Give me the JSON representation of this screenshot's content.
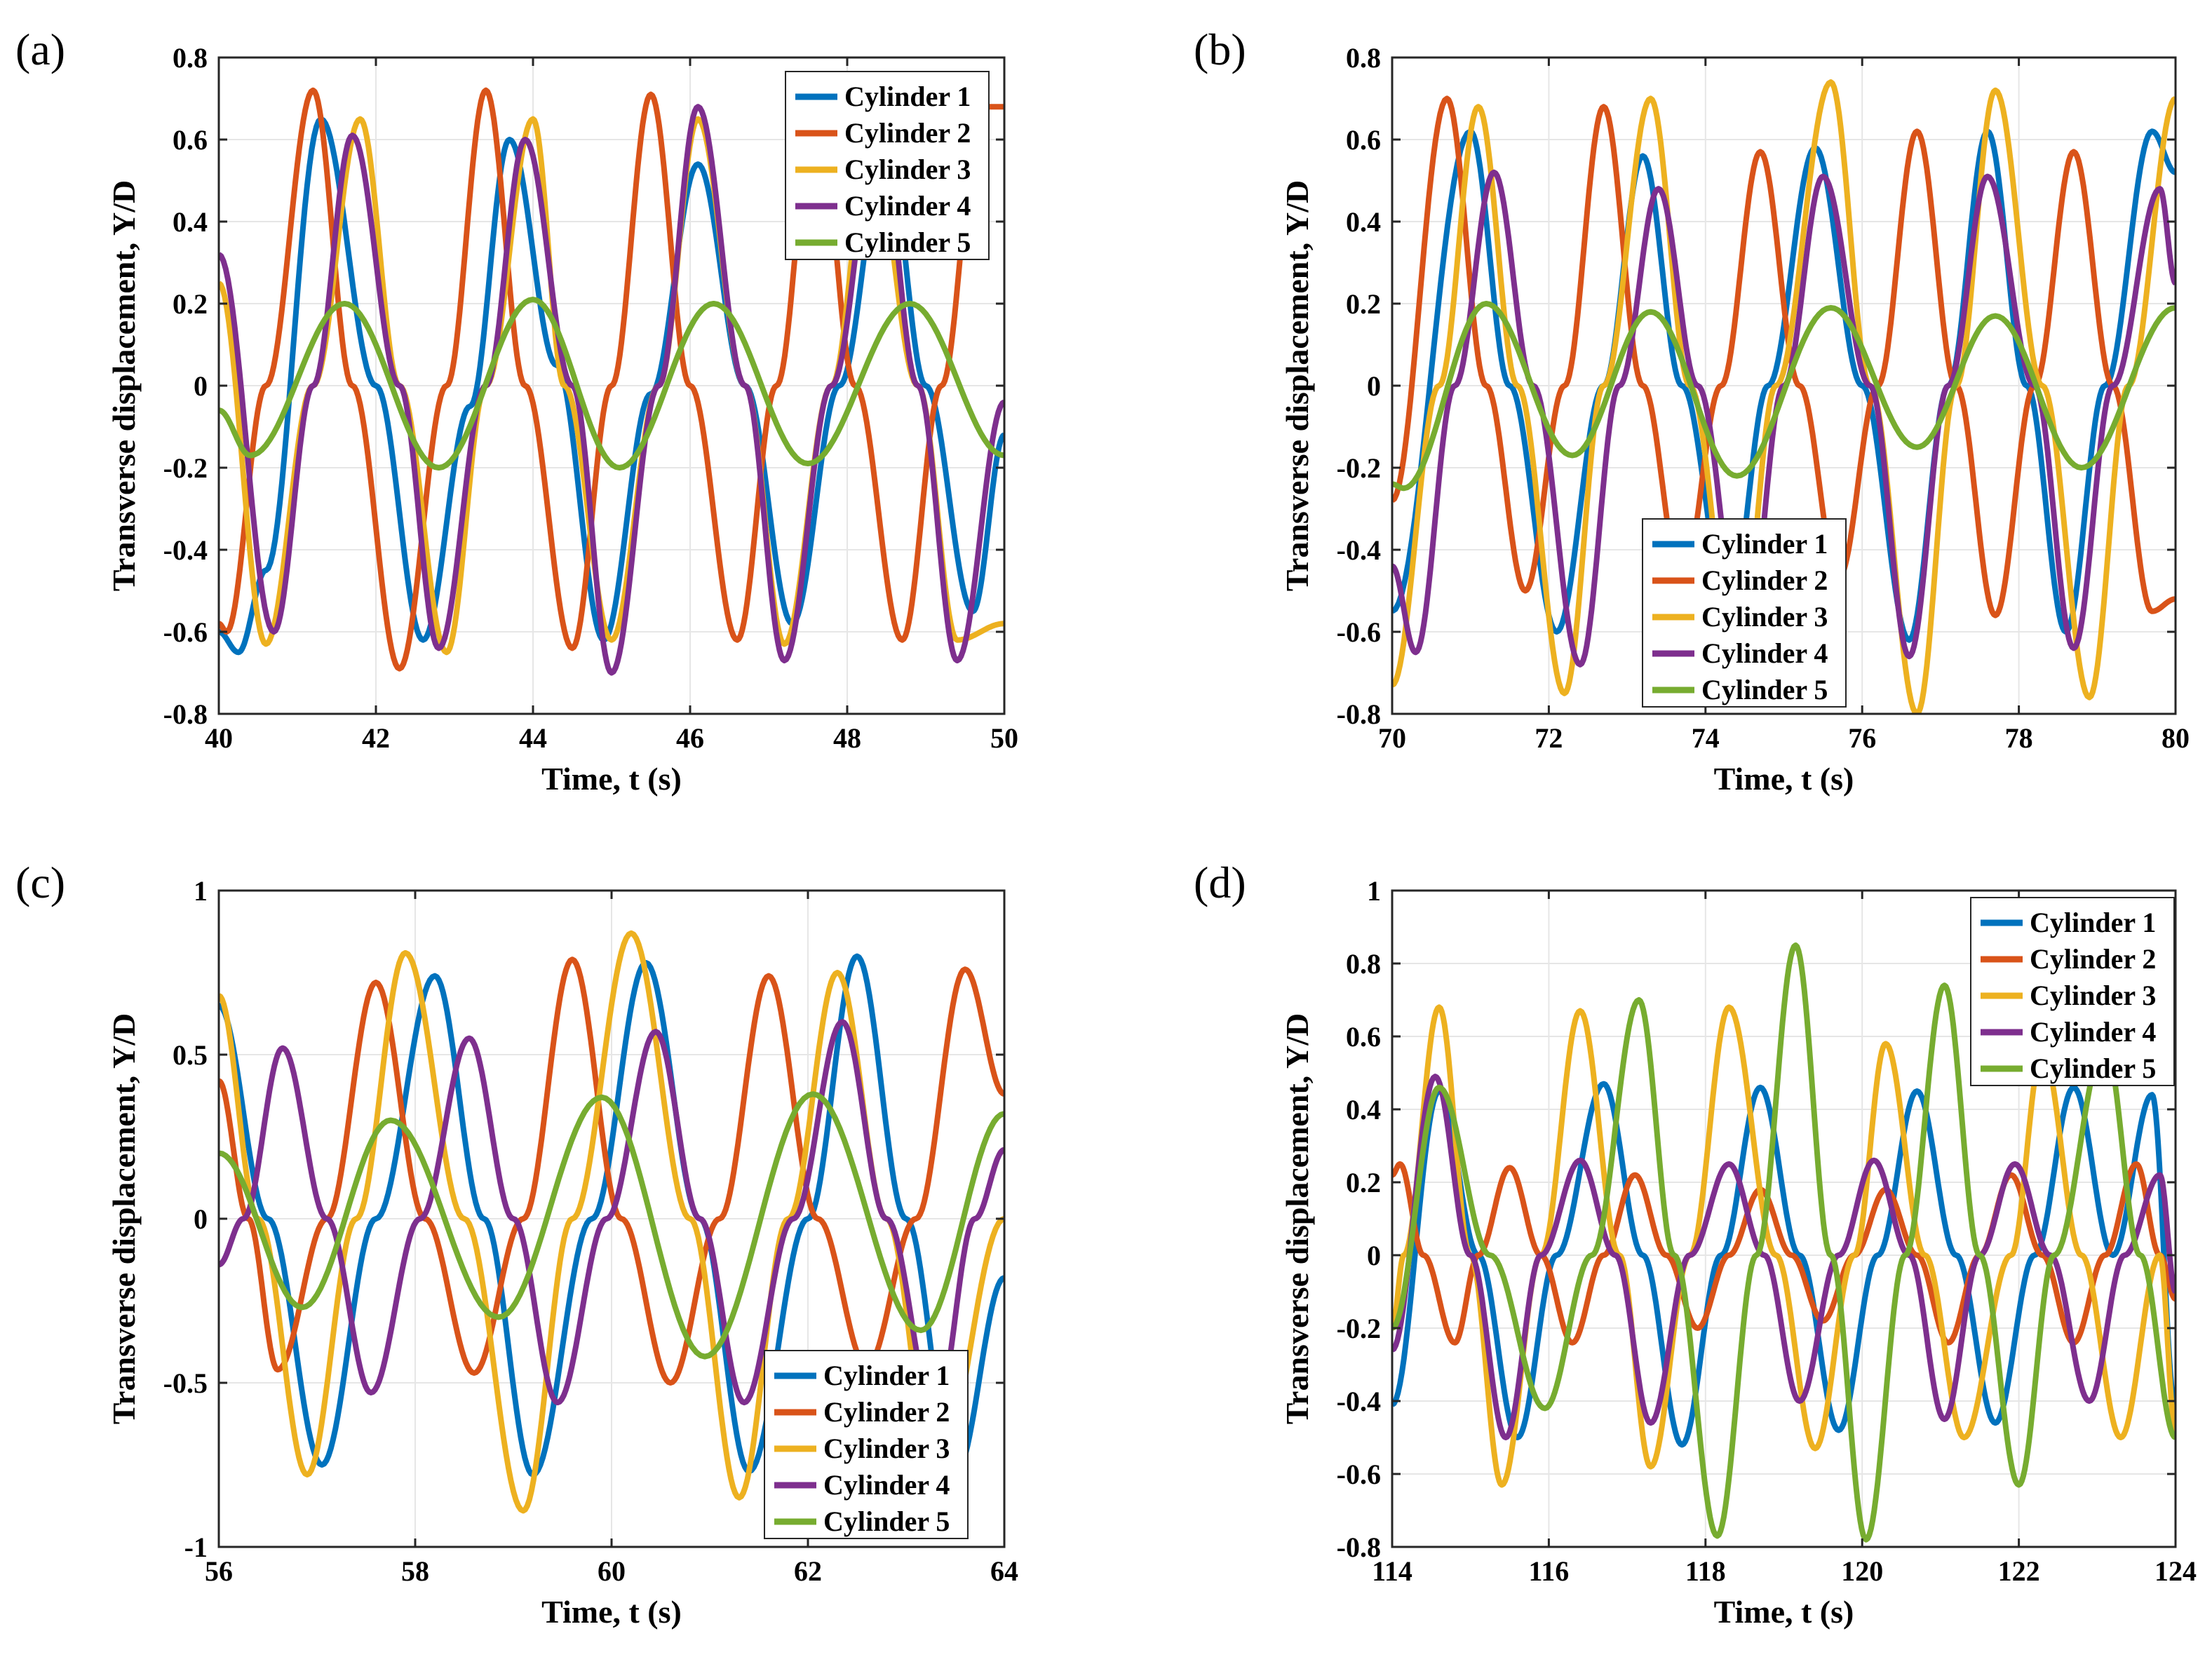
{
  "chart_data": [
    {
      "type": "line",
      "title": "(a)",
      "xlabel": "Time, t (s)",
      "ylabel": "Transverse displacement, Y/D",
      "xlim": [
        40,
        50
      ],
      "ylim": [
        -0.8,
        0.8
      ],
      "xticks": [
        40,
        42,
        44,
        46,
        48,
        50
      ],
      "yticks": [
        -0.8,
        -0.6,
        -0.4,
        -0.2,
        0,
        0.2,
        0.4,
        0.6,
        0.8
      ],
      "xtick_labels": [
        "40",
        "42",
        "44",
        "46",
        "48",
        "50"
      ],
      "ytick_labels": [
        "-0.8",
        "-0.6",
        "-0.4",
        "-0.2",
        "0",
        "0.2",
        "0.4",
        "0.6",
        "0.8"
      ],
      "legend_location": "top-right",
      "line_width": "thick",
      "series": [
        {
          "name": "Cylinder 1",
          "color": "#0072BD",
          "x": [
            40,
            40.25,
            40.6,
            41.3,
            42.0,
            42.6,
            43.2,
            43.7,
            44.3,
            44.9,
            45.5,
            46.1,
            46.7,
            47.3,
            47.9,
            48.5,
            49.0,
            49.6,
            50.0
          ],
          "y": [
            -0.6,
            -0.65,
            -0.45,
            0.65,
            0.0,
            -0.62,
            -0.05,
            0.6,
            0.05,
            -0.62,
            -0.02,
            0.54,
            0.0,
            -0.58,
            0.0,
            0.58,
            0.0,
            -0.55,
            -0.12
          ]
        },
        {
          "name": "Cylinder 2",
          "color": "#D95319",
          "x": [
            40,
            40.1,
            40.6,
            41.2,
            41.7,
            42.3,
            42.9,
            43.4,
            43.9,
            44.5,
            45.0,
            45.5,
            46.0,
            46.6,
            47.1,
            47.6,
            48.1,
            48.7,
            49.2,
            49.7,
            50.0
          ],
          "y": [
            -0.58,
            -0.6,
            0.0,
            0.72,
            0.0,
            -0.69,
            0.0,
            0.72,
            0.0,
            -0.64,
            0.0,
            0.71,
            0.0,
            -0.62,
            0.0,
            0.7,
            0.0,
            -0.62,
            0.0,
            0.68,
            0.68
          ]
        },
        {
          "name": "Cylinder 3",
          "color": "#EDB120",
          "x": [
            40,
            40.6,
            41.2,
            41.8,
            42.3,
            42.9,
            43.4,
            44.0,
            44.4,
            45.0,
            45.6,
            46.1,
            46.7,
            47.2,
            47.8,
            48.3,
            48.9,
            49.4,
            50.0
          ],
          "y": [
            0.25,
            -0.63,
            0.0,
            0.65,
            0.0,
            -0.65,
            0.0,
            0.65,
            0.0,
            -0.62,
            0.0,
            0.65,
            0.0,
            -0.63,
            0.0,
            0.6,
            0.0,
            -0.62,
            -0.58
          ]
        },
        {
          "name": "Cylinder 4",
          "color": "#7E2F8E",
          "x": [
            40,
            40.7,
            41.2,
            41.7,
            42.3,
            42.8,
            43.4,
            43.9,
            44.5,
            45.0,
            45.6,
            46.1,
            46.7,
            47.2,
            47.8,
            48.4,
            48.9,
            49.4,
            50.0
          ],
          "y": [
            0.32,
            -0.6,
            0.0,
            0.61,
            0.0,
            -0.64,
            0.0,
            0.6,
            0.0,
            -0.7,
            0.0,
            0.68,
            0.0,
            -0.67,
            0.0,
            0.62,
            0.0,
            -0.67,
            -0.04
          ]
        },
        {
          "name": "Cylinder 5",
          "color": "#77AC30",
          "x": [
            40,
            40.4,
            41.6,
            42.8,
            44.0,
            45.1,
            46.3,
            47.5,
            48.8,
            50.0
          ],
          "y": [
            -0.06,
            -0.17,
            0.2,
            -0.2,
            0.21,
            -0.2,
            0.2,
            -0.19,
            0.2,
            -0.17
          ]
        }
      ]
    },
    {
      "type": "line",
      "title": "(b)",
      "xlabel": "Time, t (s)",
      "ylabel": "Transverse displacement, Y/D",
      "xlim": [
        70,
        80
      ],
      "ylim": [
        -0.8,
        0.8
      ],
      "xticks": [
        70,
        72,
        74,
        76,
        78,
        80
      ],
      "yticks": [
        -0.8,
        -0.6,
        -0.4,
        -0.2,
        0,
        0.2,
        0.4,
        0.6,
        0.8
      ],
      "xtick_labels": [
        "70",
        "72",
        "74",
        "76",
        "78",
        "80"
      ],
      "ytick_labels": [
        "-0.8",
        "-0.6",
        "-0.4",
        "-0.2",
        "0",
        "0.2",
        "0.4",
        "0.6",
        "0.8"
      ],
      "legend_location": "bottom-center",
      "line_width": "thick",
      "series": [
        {
          "name": "Cylinder 1",
          "color": "#0072BD",
          "x": [
            70,
            71.0,
            71.5,
            72.1,
            72.7,
            73.2,
            73.7,
            74.3,
            74.8,
            75.4,
            76.0,
            76.6,
            77.1,
            77.6,
            78.1,
            78.6,
            79.1,
            79.7,
            80.0
          ],
          "y": [
            -0.55,
            0.62,
            0.0,
            -0.6,
            0.0,
            0.56,
            0.0,
            -0.55,
            0.0,
            0.58,
            0.0,
            -0.62,
            0.0,
            0.62,
            0.0,
            -0.6,
            0.0,
            0.62,
            0.52
          ]
        },
        {
          "name": "Cylinder 2",
          "color": "#D95319",
          "x": [
            70,
            70.7,
            71.2,
            71.7,
            72.2,
            72.7,
            73.2,
            73.7,
            74.2,
            74.7,
            75.2,
            75.7,
            76.2,
            76.7,
            77.2,
            77.7,
            78.2,
            78.7,
            79.2,
            79.7,
            80.0
          ],
          "y": [
            -0.28,
            0.7,
            0.0,
            -0.5,
            0.0,
            0.68,
            0.0,
            -0.48,
            0.0,
            0.57,
            0.0,
            -0.47,
            0.0,
            0.62,
            0.0,
            -0.56,
            0.0,
            0.57,
            0.0,
            -0.55,
            -0.52
          ]
        },
        {
          "name": "Cylinder 3",
          "color": "#EDB120",
          "x": [
            70,
            70.6,
            71.1,
            71.6,
            72.2,
            72.7,
            73.3,
            73.8,
            74.4,
            74.9,
            75.6,
            76.1,
            76.7,
            77.2,
            77.7,
            78.3,
            78.9,
            79.4,
            80.0
          ],
          "y": [
            -0.73,
            0.0,
            0.68,
            0.0,
            -0.75,
            0.0,
            0.7,
            0.0,
            -0.7,
            0.0,
            0.74,
            0.0,
            -0.8,
            0.0,
            0.72,
            0.0,
            -0.76,
            0.0,
            0.7
          ]
        },
        {
          "name": "Cylinder 4",
          "color": "#7E2F8E",
          "x": [
            70,
            70.3,
            70.8,
            71.3,
            71.8,
            72.4,
            72.9,
            73.4,
            73.9,
            74.5,
            75.0,
            75.5,
            76.1,
            76.6,
            77.1,
            77.6,
            78.2,
            78.7,
            79.2,
            79.8,
            80.0
          ],
          "y": [
            -0.44,
            -0.65,
            0.0,
            0.52,
            0.0,
            -0.68,
            0.0,
            0.48,
            0.0,
            -0.65,
            0.0,
            0.51,
            0.0,
            -0.66,
            0.0,
            0.51,
            0.0,
            -0.64,
            0.0,
            0.48,
            0.25
          ]
        },
        {
          "name": "Cylinder 5",
          "color": "#77AC30",
          "x": [
            70,
            70.15,
            71.2,
            72.3,
            73.3,
            74.4,
            75.6,
            76.7,
            77.7,
            78.8,
            80.0
          ],
          "y": [
            -0.24,
            -0.25,
            0.2,
            -0.17,
            0.18,
            -0.22,
            0.19,
            -0.15,
            0.17,
            -0.2,
            0.19
          ]
        }
      ]
    },
    {
      "type": "line",
      "title": "(c)",
      "xlabel": "Time, t (s)",
      "ylabel": "Transverse displacement, Y/D",
      "xlim": [
        56,
        64
      ],
      "ylim": [
        -1,
        1
      ],
      "xticks": [
        56,
        58,
        60,
        62,
        64
      ],
      "yticks": [
        -1,
        -0.5,
        0,
        0.5,
        1
      ],
      "xtick_labels": [
        "56",
        "58",
        "60",
        "62",
        "64"
      ],
      "ytick_labels": [
        "-1",
        "-0.5",
        "0",
        "0.5",
        "1"
      ],
      "legend_location": "bottom-right",
      "line_width": "thick",
      "series": [
        {
          "name": "Cylinder 1",
          "color": "#0072BD",
          "x": [
            56,
            56.5,
            57.05,
            57.6,
            58.2,
            58.7,
            59.2,
            59.8,
            60.35,
            60.9,
            61.4,
            62.0,
            62.5,
            63.0,
            63.5,
            64.0
          ],
          "y": [
            0.65,
            0.0,
            -0.75,
            0.0,
            0.74,
            0.0,
            -0.78,
            0.0,
            0.78,
            0.0,
            -0.77,
            0.0,
            0.8,
            0.0,
            -0.78,
            -0.18
          ]
        },
        {
          "name": "Cylinder 2",
          "color": "#D95319",
          "x": [
            56,
            56.3,
            56.6,
            57.1,
            57.6,
            58.1,
            58.6,
            59.1,
            59.6,
            60.1,
            60.6,
            61.1,
            61.6,
            62.1,
            62.6,
            63.1,
            63.6,
            64.0
          ],
          "y": [
            0.42,
            0.0,
            -0.46,
            0.0,
            0.72,
            0.0,
            -0.47,
            0.0,
            0.79,
            0.0,
            -0.5,
            0.0,
            0.74,
            0.0,
            -0.45,
            0.0,
            0.76,
            0.38
          ]
        },
        {
          "name": "Cylinder 3",
          "color": "#EDB120",
          "x": [
            56,
            56.4,
            56.9,
            57.4,
            57.9,
            58.5,
            59.1,
            59.6,
            60.2,
            60.8,
            61.3,
            61.8,
            62.3,
            62.8,
            63.3,
            64.0
          ],
          "y": [
            0.68,
            0.0,
            -0.78,
            0.0,
            0.81,
            0.0,
            -0.89,
            0.0,
            0.87,
            0.0,
            -0.85,
            0.0,
            0.75,
            0.0,
            -0.8,
            0.0
          ]
        },
        {
          "name": "Cylinder 4",
          "color": "#7E2F8E",
          "x": [
            56,
            56.25,
            56.65,
            57.1,
            57.55,
            58.05,
            58.55,
            59.0,
            59.45,
            59.95,
            60.45,
            60.9,
            61.35,
            61.85,
            62.35,
            62.8,
            63.3,
            63.7,
            64.0
          ],
          "y": [
            -0.14,
            0.0,
            0.52,
            0.0,
            -0.53,
            0.0,
            0.55,
            0.0,
            -0.56,
            0.0,
            0.57,
            0.0,
            -0.56,
            0.0,
            0.6,
            0.0,
            -0.6,
            0.0,
            0.21
          ]
        },
        {
          "name": "Cylinder 5",
          "color": "#77AC30",
          "x": [
            56,
            56.85,
            57.75,
            58.85,
            59.9,
            60.95,
            62.05,
            63.15,
            64.0
          ],
          "y": [
            0.2,
            -0.27,
            0.3,
            -0.3,
            0.37,
            -0.42,
            0.38,
            -0.34,
            0.32
          ]
        }
      ]
    },
    {
      "type": "line",
      "title": "(d)",
      "xlabel": "Time, t (s)",
      "ylabel": "Transverse displacement, Y/D",
      "xlim": [
        114,
        124
      ],
      "ylim": [
        -0.8,
        1
      ],
      "xticks": [
        114,
        116,
        118,
        120,
        122,
        124
      ],
      "yticks": [
        -0.8,
        -0.6,
        -0.4,
        -0.2,
        0,
        0.2,
        0.4,
        0.6,
        0.8,
        1
      ],
      "xtick_labels": [
        "114",
        "116",
        "118",
        "120",
        "122",
        "124"
      ],
      "ytick_labels": [
        "-0.8",
        "-0.6",
        "-0.4",
        "-0.2",
        "0",
        "0.2",
        "0.4",
        "0.6",
        "0.8",
        "1"
      ],
      "legend_location": "top-right",
      "line_width": "thick",
      "series": [
        {
          "name": "Cylinder 1",
          "color": "#0072BD",
          "x": [
            114,
            114.6,
            115.1,
            115.6,
            116.1,
            116.7,
            117.2,
            117.7,
            118.2,
            118.7,
            119.2,
            119.7,
            120.2,
            120.7,
            121.2,
            121.7,
            122.2,
            122.7,
            123.2,
            123.7,
            124.0
          ],
          "y": [
            -0.41,
            0.45,
            0.0,
            -0.5,
            0.0,
            0.47,
            0.0,
            -0.52,
            0.0,
            0.46,
            0.0,
            -0.48,
            0.0,
            0.45,
            0.0,
            -0.46,
            0.0,
            0.46,
            0.0,
            0.44,
            -0.42
          ]
        },
        {
          "name": "Cylinder 2",
          "color": "#D95319",
          "x": [
            114,
            114.1,
            114.4,
            114.8,
            115.1,
            115.5,
            115.9,
            116.3,
            116.7,
            117.1,
            117.5,
            117.9,
            118.3,
            118.7,
            119.1,
            119.5,
            119.9,
            120.3,
            120.7,
            121.1,
            121.5,
            121.9,
            122.3,
            122.7,
            123.1,
            123.5,
            123.8,
            124.0
          ],
          "y": [
            0.22,
            0.25,
            0.0,
            -0.24,
            0.0,
            0.24,
            0.0,
            -0.24,
            0.0,
            0.22,
            0.0,
            -0.2,
            0.0,
            0.18,
            0.0,
            -0.18,
            0.0,
            0.18,
            0.0,
            -0.24,
            0.0,
            0.22,
            0.0,
            -0.24,
            0.0,
            0.25,
            0.0,
            -0.12
          ]
        },
        {
          "name": "Cylinder 3",
          "color": "#EDB120",
          "x": [
            114,
            114.15,
            114.6,
            115.0,
            115.4,
            115.9,
            116.4,
            116.9,
            117.3,
            117.8,
            118.3,
            118.9,
            119.4,
            119.9,
            120.3,
            120.8,
            121.3,
            121.9,
            122.3,
            122.8,
            123.3,
            123.8,
            124.0
          ],
          "y": [
            -0.2,
            0.0,
            0.68,
            0.0,
            -0.63,
            0.0,
            0.67,
            0.0,
            -0.58,
            0.0,
            0.68,
            0.0,
            -0.53,
            0.0,
            0.58,
            0.0,
            -0.5,
            0.0,
            0.56,
            0.0,
            -0.5,
            0.0,
            -0.48
          ]
        },
        {
          "name": "Cylinder 4",
          "color": "#7E2F8E",
          "x": [
            114,
            114.55,
            115.0,
            115.45,
            115.9,
            116.4,
            116.85,
            117.3,
            117.8,
            118.3,
            118.75,
            119.2,
            119.7,
            120.15,
            120.6,
            121.05,
            121.5,
            121.95,
            122.4,
            122.9,
            123.35,
            123.8,
            124.0
          ],
          "y": [
            -0.26,
            0.49,
            0.0,
            -0.5,
            0.0,
            0.26,
            0.0,
            -0.46,
            0.0,
            0.25,
            0.0,
            -0.4,
            0.0,
            0.26,
            0.0,
            -0.45,
            0.0,
            0.25,
            0.0,
            -0.4,
            0.0,
            0.22,
            -0.1
          ]
        },
        {
          "name": "Cylinder 5",
          "color": "#77AC30",
          "x": [
            114,
            114.6,
            115.25,
            115.95,
            116.55,
            117.15,
            117.6,
            118.15,
            118.65,
            119.15,
            119.6,
            120.05,
            120.55,
            121.05,
            121.5,
            122.0,
            122.45,
            123.1,
            123.55,
            124.0
          ],
          "y": [
            -0.2,
            0.46,
            0.0,
            -0.42,
            0.0,
            0.7,
            0.0,
            -0.77,
            0.0,
            0.85,
            0.0,
            -0.78,
            0.0,
            0.74,
            0.0,
            -0.63,
            0.0,
            0.58,
            0.0,
            -0.5
          ]
        }
      ]
    }
  ]
}
